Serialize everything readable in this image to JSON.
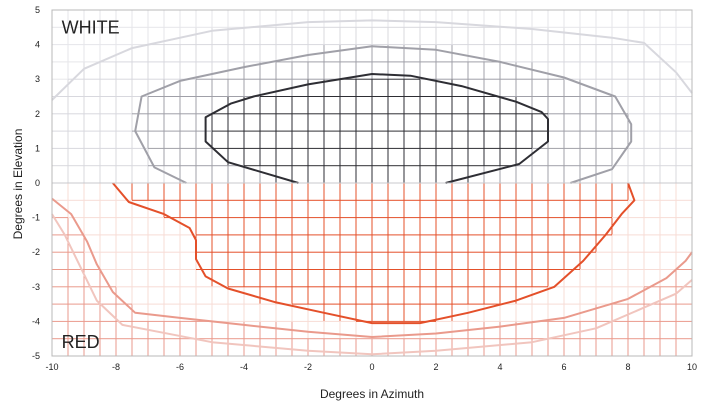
{
  "chart_data": {
    "type": "contour",
    "xlabel": "Degrees in Azimuth",
    "ylabel": "Degrees in Elevation",
    "xlim": [
      -10,
      10
    ],
    "ylim": [
      -5,
      5
    ],
    "x_ticks": [
      "-10",
      "-8",
      "-6",
      "-4",
      "-2",
      "0",
      "2",
      "4",
      "6",
      "8",
      "10"
    ],
    "y_ticks": [
      "-5",
      "-4",
      "-3",
      "-2",
      "-1",
      "0",
      "1",
      "2",
      "3",
      "4",
      "5"
    ],
    "grid_step": 0.5,
    "annotations": [
      {
        "text": "WHITE",
        "x": -9.7,
        "y": 4.5
      },
      {
        "text": "RED",
        "x": -9.7,
        "y": -4.6
      }
    ],
    "series": [
      {
        "color": "#d8d8de",
        "region": "white",
        "points": [
          [
            -10,
            2.4
          ],
          [
            -9,
            3.3
          ],
          [
            -7.5,
            3.9
          ],
          [
            -5,
            4.4
          ],
          [
            -2,
            4.65
          ],
          [
            0,
            4.7
          ],
          [
            2,
            4.65
          ],
          [
            5,
            4.45
          ],
          [
            7.5,
            4.2
          ],
          [
            8.5,
            4.05
          ],
          [
            9.5,
            3.2
          ],
          [
            10,
            2.6
          ]
        ]
      },
      {
        "color": "#a0a0a8",
        "region": "white",
        "points": [
          [
            -5.8,
            0
          ],
          [
            -6.8,
            0.45
          ],
          [
            -7.4,
            1.5
          ],
          [
            -7.2,
            2.5
          ],
          [
            -6,
            2.95
          ],
          [
            -4,
            3.35
          ],
          [
            -2,
            3.7
          ],
          [
            0,
            3.95
          ],
          [
            2,
            3.85
          ],
          [
            4,
            3.5
          ],
          [
            6,
            3.05
          ],
          [
            7.6,
            2.5
          ],
          [
            8.1,
            1.7
          ],
          [
            8.1,
            1.2
          ],
          [
            7.5,
            0.4
          ],
          [
            6.2,
            0
          ]
        ]
      },
      {
        "color": "#2e2e34",
        "region": "white",
        "points": [
          [
            -2.3,
            0
          ],
          [
            -4.5,
            0.6
          ],
          [
            -5.2,
            1.2
          ],
          [
            -5.2,
            1.9
          ],
          [
            -4.4,
            2.3
          ],
          [
            -3.7,
            2.5
          ],
          [
            -2,
            2.85
          ],
          [
            0,
            3.15
          ],
          [
            1.2,
            3.1
          ],
          [
            2.8,
            2.8
          ],
          [
            4.5,
            2.35
          ],
          [
            5.3,
            2.05
          ],
          [
            5.5,
            1.85
          ],
          [
            5.5,
            1.2
          ],
          [
            4.6,
            0.55
          ],
          [
            2.3,
            0
          ]
        ]
      },
      {
        "color": "#f1c5be",
        "region": "red",
        "points": [
          [
            -10,
            -0.9
          ],
          [
            -9.6,
            -1.5
          ],
          [
            -8.6,
            -3.4
          ],
          [
            -7.8,
            -4.1
          ],
          [
            -5,
            -4.6
          ],
          [
            -2,
            -4.85
          ],
          [
            0,
            -4.95
          ],
          [
            2,
            -4.85
          ],
          [
            5,
            -4.6
          ],
          [
            7,
            -4.2
          ],
          [
            8.5,
            -3.6
          ],
          [
            9.5,
            -3.2
          ],
          [
            10,
            -2.8
          ]
        ]
      },
      {
        "color": "#ea9a8c",
        "region": "red",
        "points": [
          [
            -10,
            -0.45
          ],
          [
            -9.4,
            -0.9
          ],
          [
            -8.9,
            -1.7
          ],
          [
            -8.6,
            -2.35
          ],
          [
            -8.1,
            -3.15
          ],
          [
            -7.4,
            -3.75
          ],
          [
            -6,
            -3.9
          ],
          [
            -4,
            -4.1
          ],
          [
            -2,
            -4.3
          ],
          [
            0,
            -4.45
          ],
          [
            2,
            -4.35
          ],
          [
            4,
            -4.15
          ],
          [
            6,
            -3.9
          ],
          [
            8,
            -3.35
          ],
          [
            9.2,
            -2.75
          ],
          [
            9.8,
            -2.25
          ],
          [
            10,
            -2
          ]
        ]
      },
      {
        "color": "#e4502a",
        "region": "red",
        "points": [
          [
            -8.1,
            0
          ],
          [
            -7.6,
            -0.55
          ],
          [
            -6.5,
            -0.9
          ],
          [
            -5.7,
            -1.3
          ],
          [
            -5.5,
            -1.65
          ],
          [
            -5.5,
            -2.2
          ],
          [
            -5.2,
            -2.7
          ],
          [
            -4.5,
            -3.05
          ],
          [
            -3,
            -3.45
          ],
          [
            -1.5,
            -3.75
          ],
          [
            0,
            -4.05
          ],
          [
            1.5,
            -4.05
          ],
          [
            3,
            -3.75
          ],
          [
            4.5,
            -3.4
          ],
          [
            5.7,
            -3
          ],
          [
            6.6,
            -2.25
          ],
          [
            7.3,
            -1.5
          ],
          [
            7.8,
            -0.9
          ],
          [
            8.2,
            -0.5
          ],
          [
            8,
            0
          ]
        ]
      }
    ]
  }
}
